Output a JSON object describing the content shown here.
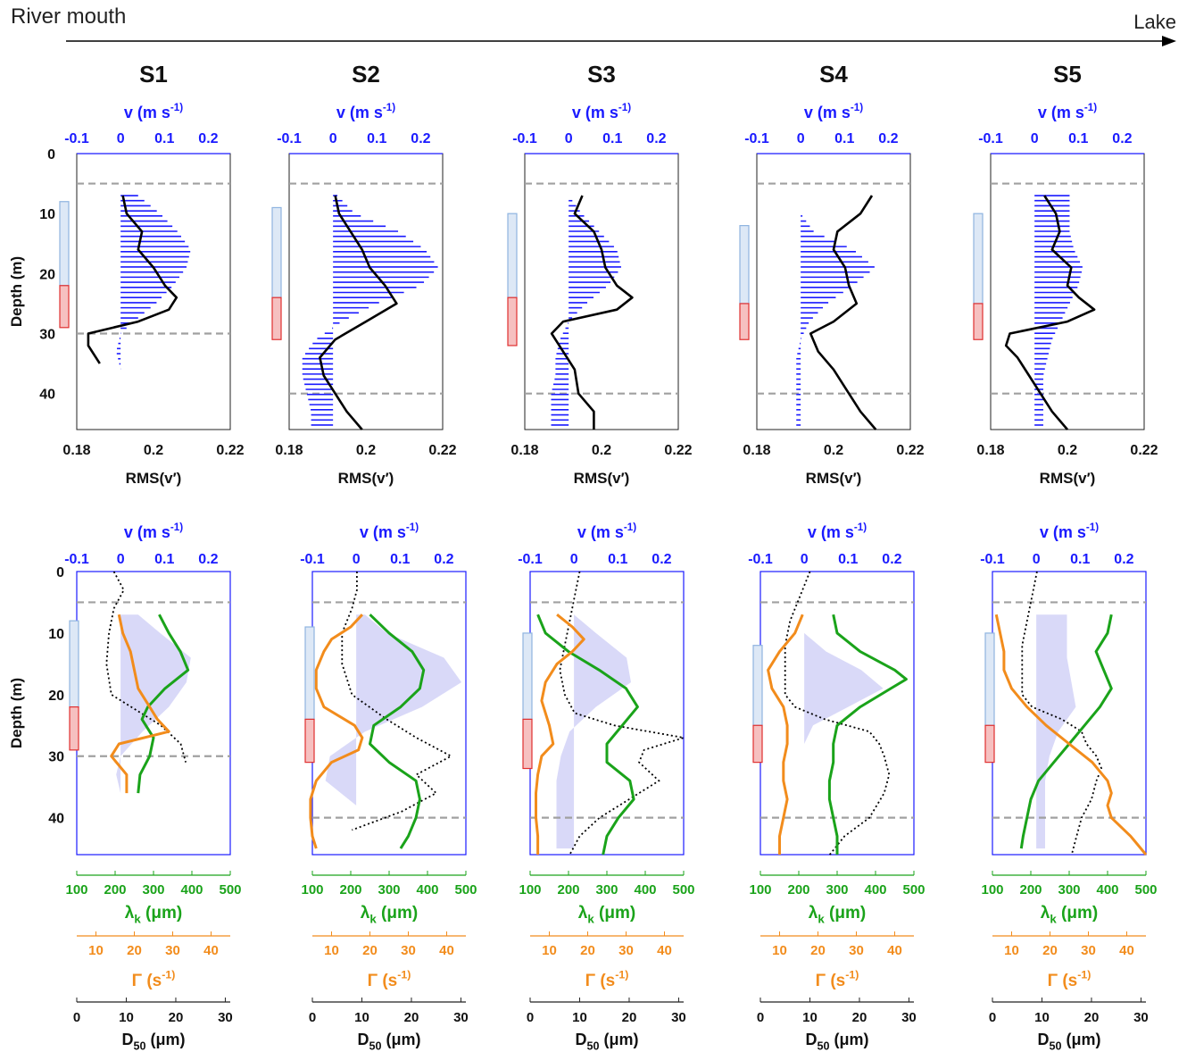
{
  "header": {
    "left_label": "River mouth",
    "right_label": "Lake"
  },
  "labels": {
    "depth_axis": "Depth (m)",
    "v_axis": "v (m s⁻¹)",
    "rms_axis": "RMS(v′)",
    "lambda_axis": "λk (μm)",
    "gamma_axis": "Γ (s⁻¹)",
    "d50_axis": "D50 (μm)"
  },
  "colors": {
    "velocity": "#1a1aff",
    "rms": "#000000",
    "lambda": "#1aa31a",
    "gamma": "#f28c1c",
    "d50": "#000000",
    "shade": "#ccccf5",
    "dashed": "#a0a0a0",
    "hypolimnion_box": "#e03030",
    "metalimnion_box": "#8fb4e0"
  },
  "chart_data": {
    "type": "line",
    "axes": {
      "depth_range": [
        0,
        46
      ],
      "depth_ticks": [
        0,
        10,
        20,
        30,
        40
      ],
      "v_range": [
        -0.1,
        0.25
      ],
      "v_ticks": [
        -0.1,
        0,
        0.1,
        0.2
      ],
      "rms_range": [
        0.18,
        0.22
      ],
      "rms_ticks": [
        0.18,
        0.2,
        0.22
      ],
      "lambda_range": [
        100,
        500
      ],
      "lambda_ticks": [
        100,
        200,
        300,
        400,
        500
      ],
      "gamma_range": [
        5,
        45
      ],
      "gamma_ticks": [
        10,
        20,
        30,
        40
      ],
      "d50_range": [
        0,
        31
      ],
      "d50_ticks": [
        0,
        10,
        20,
        30
      ]
    },
    "stations": [
      {
        "name": "S1",
        "dashed_depths": [
          5,
          30
        ],
        "metalimnion_box": [
          8,
          22
        ],
        "hypolimnion_box": [
          22,
          29
        ],
        "v_depth": [
          7,
          10,
          13,
          16,
          19,
          22,
          25,
          28,
          30,
          33,
          36
        ],
        "v_values": [
          0.04,
          0.09,
          0.13,
          0.16,
          0.15,
          0.12,
          0.08,
          0.03,
          0.0,
          -0.01,
          0.0
        ],
        "rms_depth": [
          7,
          10,
          13,
          16,
          19,
          22,
          24,
          26,
          28,
          30,
          32,
          35
        ],
        "rms_values": [
          0.192,
          0.193,
          0.197,
          0.196,
          0.2,
          0.203,
          0.206,
          0.204,
          0.196,
          0.183,
          0.183,
          0.186
        ],
        "bottom_v_depth": [
          7,
          10,
          14,
          18,
          22,
          26,
          30,
          33,
          36
        ],
        "bottom_v_values": [
          0.04,
          0.09,
          0.16,
          0.15,
          0.11,
          0.05,
          0.0,
          -0.01,
          0.0
        ],
        "lambda_depth": [
          7,
          10,
          13,
          16,
          19,
          22,
          24,
          27,
          30,
          33,
          36
        ],
        "lambda_values": [
          315,
          340,
          370,
          390,
          330,
          285,
          270,
          300,
          290,
          265,
          260
        ],
        "gamma_depth": [
          7,
          10,
          13,
          16,
          19,
          22,
          24,
          26,
          28,
          30,
          33,
          36
        ],
        "gamma_values": [
          16,
          17,
          19,
          20,
          21,
          24,
          26,
          29,
          16,
          14,
          18,
          18
        ],
        "d50_depth": [
          0,
          3,
          6,
          10,
          15,
          20,
          25,
          28,
          31
        ],
        "d50_values": [
          7.5,
          9.5,
          7.5,
          6.5,
          6,
          7,
          17,
          21,
          22
        ]
      },
      {
        "name": "S2",
        "dashed_depths": [
          5,
          40
        ],
        "metalimnion_box": [
          9,
          24
        ],
        "hypolimnion_box": [
          24,
          31
        ],
        "v_depth": [
          7,
          10,
          13,
          16,
          19,
          22,
          25,
          28,
          31,
          34,
          37,
          40,
          43,
          46
        ],
        "v_values": [
          0.01,
          0.05,
          0.15,
          0.21,
          0.24,
          0.2,
          0.1,
          0.02,
          -0.04,
          -0.07,
          -0.07,
          -0.06,
          -0.05,
          -0.05
        ],
        "rms_depth": [
          7,
          10,
          13,
          16,
          19,
          22,
          25,
          28,
          31,
          34,
          37,
          40,
          43,
          46
        ],
        "rms_values": [
          0.192,
          0.193,
          0.196,
          0.199,
          0.201,
          0.205,
          0.208,
          0.2,
          0.192,
          0.188,
          0.189,
          0.192,
          0.195,
          0.199
        ],
        "bottom_v_depth": [
          7,
          10,
          14,
          18,
          22,
          26,
          30,
          34,
          38,
          42,
          44
        ],
        "bottom_v_values": [
          0.02,
          0.07,
          0.2,
          0.24,
          0.15,
          0.02,
          -0.06,
          -0.07,
          0.0,
          0.0,
          0.0
        ],
        "lambda_depth": [
          7,
          10,
          13,
          16,
          19,
          22,
          25,
          28,
          31,
          34,
          37,
          40,
          43,
          45
        ],
        "lambda_values": [
          250,
          300,
          360,
          390,
          380,
          330,
          260,
          250,
          300,
          370,
          380,
          370,
          350,
          330
        ],
        "gamma_depth": [
          7,
          9,
          11,
          13,
          16,
          19,
          22,
          25,
          27,
          29,
          31,
          34,
          37,
          40,
          43,
          45
        ],
        "gamma_values": [
          18,
          15,
          10,
          8,
          6,
          6,
          8,
          16,
          18,
          17,
          10,
          6,
          4.5,
          4.5,
          5,
          6
        ],
        "d50_depth": [
          0,
          3,
          6,
          10,
          15,
          20,
          24,
          27,
          30,
          33,
          36,
          39,
          42
        ],
        "d50_values": [
          9,
          9,
          8,
          6,
          6,
          8,
          15,
          21,
          28,
          21,
          25,
          18,
          8
        ]
      },
      {
        "name": "S3",
        "dashed_depths": [
          5,
          40
        ],
        "metalimnion_box": [
          10,
          24
        ],
        "hypolimnion_box": [
          24,
          32
        ],
        "v_depth": [
          7,
          10,
          13,
          16,
          19,
          22,
          25,
          28,
          31,
          34,
          37,
          40,
          43,
          46
        ],
        "v_values": [
          0.0,
          0.03,
          0.07,
          0.11,
          0.12,
          0.09,
          0.04,
          0.0,
          -0.02,
          -0.03,
          -0.03,
          -0.04,
          -0.04,
          -0.04
        ],
        "rms_depth": [
          7,
          10,
          13,
          16,
          19,
          22,
          24,
          26,
          28,
          30,
          33,
          36,
          40,
          43,
          46
        ],
        "rms_values": [
          0.195,
          0.193,
          0.198,
          0.2,
          0.201,
          0.204,
          0.208,
          0.204,
          0.19,
          0.187,
          0.19,
          0.193,
          0.194,
          0.198,
          0.198
        ],
        "bottom_v_depth": [
          7,
          10,
          14,
          18,
          22,
          26,
          30,
          34,
          38,
          42,
          45
        ],
        "bottom_v_values": [
          0.0,
          0.05,
          0.12,
          0.13,
          0.05,
          -0.01,
          -0.03,
          -0.04,
          -0.04,
          -0.04,
          -0.04
        ],
        "lambda_depth": [
          7,
          10,
          13,
          16,
          19,
          22,
          25,
          28,
          31,
          34,
          37,
          40,
          43,
          46
        ],
        "lambda_values": [
          120,
          140,
          200,
          280,
          350,
          380,
          340,
          300,
          300,
          360,
          370,
          330,
          300,
          290
        ],
        "gamma_depth": [
          7,
          9,
          11,
          13,
          15,
          18,
          21,
          25,
          28,
          30,
          33,
          36,
          40,
          43,
          46
        ],
        "gamma_values": [
          12,
          16,
          19,
          16,
          12,
          9,
          8,
          10,
          11,
          8,
          7,
          6.5,
          6.5,
          7,
          7
        ],
        "d50_depth": [
          0,
          4,
          8,
          12,
          16,
          20,
          23,
          25,
          27,
          29,
          31,
          34,
          37,
          40,
          43,
          46
        ],
        "d50_values": [
          10,
          9,
          8,
          7,
          6,
          7,
          9,
          17,
          31,
          23,
          22,
          26,
          20,
          14,
          10,
          8
        ]
      },
      {
        "name": "S4",
        "dashed_depths": [
          5,
          40
        ],
        "metalimnion_box": [
          12,
          25
        ],
        "hypolimnion_box": [
          25,
          31
        ],
        "v_depth": [
          7,
          10,
          13,
          16,
          19,
          22,
          25,
          28,
          31,
          34,
          37,
          40,
          43,
          46
        ],
        "v_values": [
          0.0,
          0.0,
          0.03,
          0.12,
          0.17,
          0.12,
          0.06,
          0.02,
          0.0,
          -0.01,
          -0.01,
          -0.01,
          -0.01,
          -0.01
        ],
        "rms_depth": [
          7,
          10,
          13,
          16,
          19,
          22,
          25,
          28,
          30,
          33,
          36,
          40,
          43,
          46
        ],
        "rms_values": [
          0.21,
          0.207,
          0.201,
          0.2,
          0.203,
          0.204,
          0.206,
          0.2,
          0.194,
          0.196,
          0.2,
          0.204,
          0.207,
          0.211
        ],
        "bottom_v_depth": [
          7,
          10,
          13,
          16,
          19,
          22,
          25,
          28,
          32,
          36,
          40,
          44
        ],
        "bottom_v_values": [
          0.0,
          0.0,
          0.05,
          0.13,
          0.18,
          0.1,
          0.02,
          0.0,
          0.0,
          0.0,
          0.0,
          0.0
        ],
        "lambda_depth": [
          7,
          10,
          13,
          16,
          17.5,
          19,
          22,
          25,
          28,
          31,
          34,
          37,
          40,
          43,
          46
        ],
        "lambda_values": [
          290,
          300,
          360,
          450,
          480,
          440,
          360,
          300,
          290,
          290,
          280,
          280,
          290,
          300,
          300
        ],
        "gamma_depth": [
          7,
          10,
          13,
          16,
          19,
          22,
          25,
          28,
          31,
          34,
          37,
          40,
          43,
          46
        ],
        "gamma_values": [
          16,
          14,
          10,
          7,
          8,
          11,
          12,
          12,
          11,
          11,
          12,
          11,
          10,
          10
        ],
        "d50_depth": [
          0,
          4,
          8,
          12,
          16,
          20,
          22,
          24,
          26,
          28,
          30,
          33,
          36,
          40,
          43,
          46
        ],
        "d50_values": [
          10,
          8,
          6,
          5,
          5,
          5,
          7,
          13,
          22,
          24,
          25,
          26,
          25,
          22,
          17,
          14
        ]
      },
      {
        "name": "S5",
        "dashed_depths": [
          5,
          40
        ],
        "metalimnion_box": [
          10,
          25
        ],
        "hypolimnion_box": [
          25,
          31
        ],
        "v_depth": [
          7,
          10,
          13,
          16,
          19,
          22,
          25,
          28,
          31,
          34,
          37,
          40,
          43,
          46
        ],
        "v_values": [
          0.08,
          0.08,
          0.08,
          0.09,
          0.11,
          0.1,
          0.08,
          0.06,
          0.04,
          0.03,
          0.02,
          0.02,
          0.02,
          0.02
        ],
        "rms_depth": [
          7,
          10,
          13,
          16,
          19,
          22,
          24,
          26,
          28,
          30,
          32,
          34,
          37,
          40,
          43,
          46
        ],
        "rms_values": [
          0.194,
          0.197,
          0.198,
          0.196,
          0.201,
          0.2,
          0.203,
          0.207,
          0.2,
          0.185,
          0.184,
          0.187,
          0.19,
          0.193,
          0.196,
          0.2
        ],
        "bottom_v_depth": [
          7,
          10,
          14,
          18,
          22,
          26,
          30,
          34,
          38,
          42,
          45
        ],
        "bottom_v_values": [
          0.07,
          0.07,
          0.07,
          0.08,
          0.09,
          0.05,
          0.03,
          0.02,
          0.02,
          0.02,
          0.02
        ],
        "lambda_depth": [
          7,
          10,
          13,
          16,
          19,
          22,
          25,
          28,
          31,
          34,
          37,
          40,
          43,
          45
        ],
        "lambda_values": [
          410,
          400,
          370,
          390,
          410,
          380,
          340,
          300,
          260,
          220,
          200,
          190,
          180,
          175
        ],
        "gamma_depth": [
          7,
          10,
          13,
          16,
          19,
          22,
          25,
          28,
          31,
          34,
          36,
          38,
          40,
          43,
          46
        ],
        "gamma_values": [
          6,
          7,
          8,
          8,
          10,
          14,
          19,
          25,
          31,
          35,
          36,
          35,
          36,
          41,
          45
        ],
        "d50_depth": [
          0,
          4,
          8,
          12,
          16,
          20,
          22,
          24,
          26,
          28,
          30,
          32,
          34,
          37,
          40,
          43,
          46
        ],
        "d50_values": [
          9,
          8,
          7,
          6,
          6,
          6,
          8,
          14,
          18,
          19,
          21,
          22,
          21,
          20,
          18,
          17,
          16
        ]
      }
    ]
  }
}
